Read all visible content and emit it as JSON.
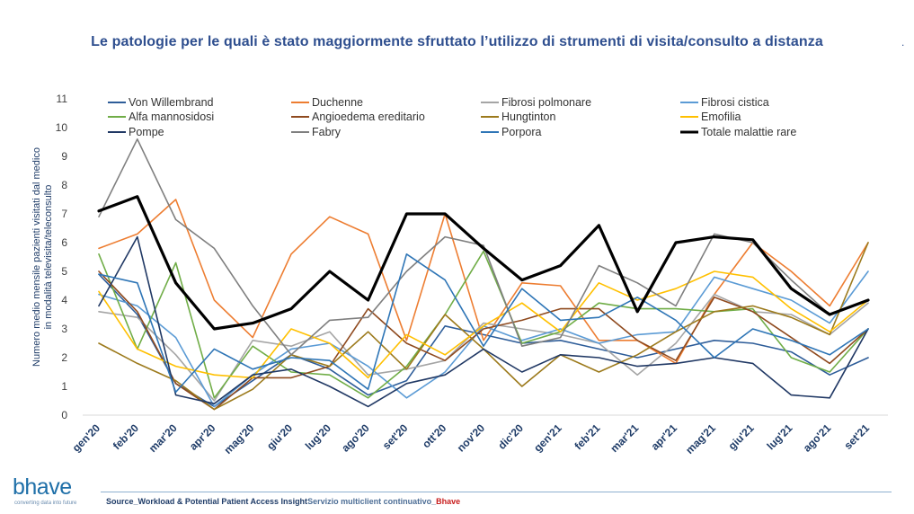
{
  "title": "Le patologie per le quali è stato maggiormente sfruttato l’utilizzo di strumenti di visita/consulto a distanza",
  "title_mark": ".",
  "logo": {
    "word": "bhave",
    "tagline": "converting data into future"
  },
  "source": {
    "part1": "Source_Workload & Potential Patient Access Insight",
    "part2": "Servizio multiclient continuativo_",
    "part3": "Bhave"
  },
  "chart_data": {
    "type": "line",
    "ylabel": "Numero medio mensile pazienti visitati dal medico in modalità televisita/teleconsulto",
    "ylim": [
      0,
      11
    ],
    "yticks": [
      0,
      1,
      2,
      3,
      4,
      5,
      6,
      7,
      8,
      9,
      10,
      11
    ],
    "grid": "horizontal-zero-line-only",
    "legend": "top",
    "categories": [
      "gen'20",
      "feb'20",
      "mar'20",
      "apr'20",
      "mag'20",
      "giu'20",
      "lug'20",
      "ago'20",
      "set'20",
      "ott'20",
      "nov'20",
      "dic'20",
      "gen'21",
      "feb'21",
      "mar'21",
      "apr'21",
      "mag'21",
      "giu'21",
      "lug'21",
      "ago'21",
      "set'21"
    ],
    "series": [
      {
        "name": "Von Willembrand",
        "color": "#2e5d99",
        "width": 1.6,
        "values": [
          4.9,
          3.5,
          1.1,
          0.3,
          1.2,
          2.1,
          1.6,
          0.7,
          1.2,
          3.1,
          2.8,
          2.5,
          2.6,
          2.3,
          2.0,
          2.3,
          2.6,
          2.5,
          2.2,
          1.4,
          2.0
        ]
      },
      {
        "name": "Duchenne",
        "color": "#ed7d31",
        "width": 1.6,
        "values": [
          5.8,
          6.3,
          7.5,
          4.0,
          2.7,
          5.6,
          6.9,
          6.3,
          2.6,
          7.0,
          2.6,
          4.6,
          4.5,
          2.6,
          2.6,
          1.8,
          4.2,
          6.0,
          5.0,
          3.8,
          6.0
        ]
      },
      {
        "name": "Fibrosi polmonare",
        "color": "#a5a5a5",
        "width": 1.6,
        "values": [
          3.6,
          3.4,
          2.1,
          0.5,
          2.6,
          2.4,
          2.9,
          1.4,
          1.6,
          1.9,
          3.2,
          3.0,
          2.8,
          2.5,
          1.4,
          2.5,
          4.2,
          3.6,
          3.5,
          2.8,
          3.9
        ]
      },
      {
        "name": "Fibrosi cistica",
        "color": "#5b9bd5",
        "width": 1.6,
        "values": [
          4.2,
          3.8,
          2.7,
          0.3,
          1.4,
          2.3,
          2.5,
          1.7,
          0.6,
          1.5,
          3.1,
          2.6,
          3.0,
          2.5,
          2.8,
          2.9,
          4.8,
          4.4,
          4.0,
          3.2,
          5.0
        ]
      },
      {
        "name": "Alfa mannosidosi",
        "color": "#70ad47",
        "width": 1.6,
        "values": [
          5.6,
          2.3,
          5.3,
          0.6,
          2.4,
          1.5,
          1.4,
          0.6,
          1.7,
          3.5,
          5.7,
          2.5,
          2.9,
          3.9,
          3.7,
          3.7,
          3.6,
          3.7,
          2.0,
          1.5,
          3.0
        ]
      },
      {
        "name": "Angioedema ereditario",
        "color": "#8f4a1f",
        "width": 1.6,
        "values": [
          5.0,
          3.6,
          1.1,
          0.2,
          1.3,
          1.3,
          1.7,
          3.7,
          2.5,
          1.9,
          3.0,
          3.3,
          3.7,
          3.7,
          2.6,
          1.9,
          4.1,
          3.6,
          2.7,
          1.8,
          3.0
        ]
      },
      {
        "name": "Hungtinton",
        "color": "#9c7a1c",
        "width": 1.6,
        "values": [
          2.5,
          1.8,
          1.2,
          0.2,
          0.9,
          2.1,
          1.7,
          2.9,
          1.6,
          3.5,
          2.3,
          1.0,
          2.1,
          1.5,
          2.1,
          2.9,
          3.6,
          3.8,
          3.4,
          2.8,
          6.0
        ]
      },
      {
        "name": "Emofilia",
        "color": "#ffc000",
        "width": 1.6,
        "values": [
          4.3,
          2.3,
          1.7,
          1.4,
          1.3,
          3.0,
          2.5,
          1.3,
          2.8,
          2.1,
          3.1,
          3.9,
          2.9,
          4.6,
          4.0,
          4.4,
          5.0,
          4.8,
          3.7,
          2.9,
          4.0
        ]
      },
      {
        "name": "Pompe",
        "color": "#203864",
        "width": 1.6,
        "values": [
          3.8,
          6.2,
          0.7,
          0.4,
          1.4,
          1.6,
          1.0,
          0.3,
          1.1,
          1.4,
          2.3,
          1.5,
          2.1,
          2.0,
          1.7,
          1.8,
          2.0,
          1.8,
          0.7,
          0.6,
          3.0
        ]
      },
      {
        "name": "Fabry",
        "color": "#7f7f7f",
        "width": 1.6,
        "values": [
          6.9,
          9.6,
          6.8,
          5.8,
          3.8,
          2.1,
          3.3,
          3.4,
          5.0,
          6.2,
          5.9,
          2.4,
          2.7,
          5.2,
          4.6,
          3.8,
          6.3,
          6.0,
          4.7,
          3.5,
          4.0
        ]
      },
      {
        "name": "Porpora",
        "color": "#2e75b6",
        "width": 1.6,
        "values": [
          4.9,
          4.6,
          0.8,
          2.3,
          1.6,
          2.0,
          1.9,
          0.9,
          5.6,
          4.7,
          2.4,
          4.4,
          3.3,
          3.4,
          4.1,
          3.3,
          2.0,
          3.0,
          2.6,
          2.1,
          3.0
        ]
      },
      {
        "name": "Totale malattie rare",
        "color": "#000000",
        "width": 3.2,
        "values": [
          7.1,
          7.6,
          4.6,
          3.0,
          3.2,
          3.7,
          5.0,
          4.0,
          7.0,
          7.0,
          5.8,
          4.7,
          5.2,
          6.6,
          3.6,
          6.0,
          6.2,
          6.1,
          4.4,
          3.5,
          4.0
        ]
      }
    ]
  }
}
